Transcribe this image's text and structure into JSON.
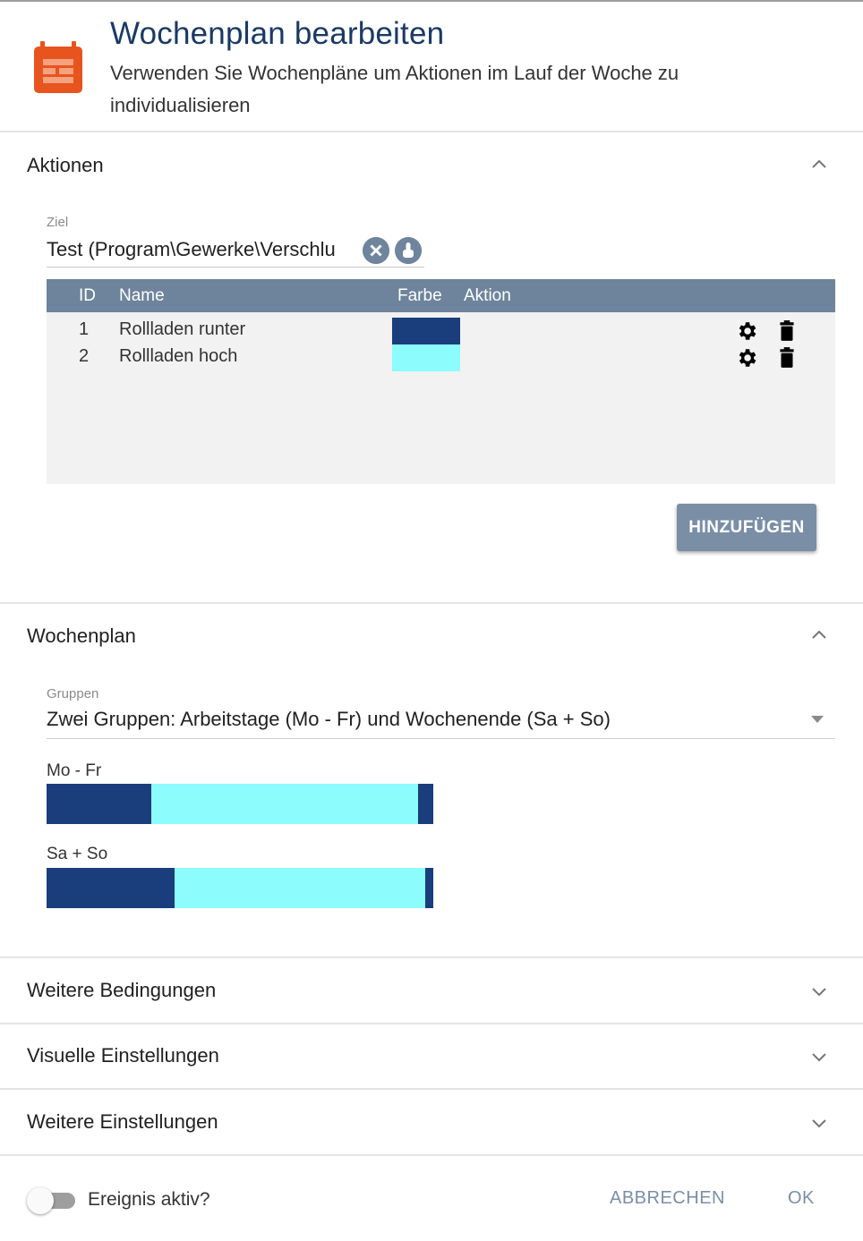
{
  "dialog": {
    "title": "Wochenplan bearbeiten",
    "subtitle": "Verwenden Sie Wochenpläne um Aktionen im Lauf der Woche zu individualisieren",
    "icon": "calendar-icon",
    "accent_color": "#e8541e"
  },
  "aktionen": {
    "section_title": "Aktionen",
    "ziel_label": "Ziel",
    "ziel_value": "Test (Program\\Gewerke\\Verschlu",
    "table": {
      "headers": [
        "ID",
        "Name",
        "Farbe",
        "Aktion"
      ],
      "rows": [
        {
          "id": "1",
          "name": "Rollladen runter",
          "color": "#1a3d7c"
        },
        {
          "id": "2",
          "name": "Rollladen hoch",
          "color": "#8dfcfc"
        }
      ],
      "header_color": "#6e849c"
    },
    "add_button": "HINZUFÜGEN"
  },
  "wochenplan": {
    "section_title": "Wochenplan",
    "gruppen_label": "Gruppen",
    "gruppen_value": "Zwei Gruppen: Arbeitstage (Mo - Fr) und Wochenende (Sa + So)",
    "groups": [
      {
        "label": "Mo - Fr",
        "segments": [
          {
            "color": "#1a3d7c",
            "fraction": 0.27
          },
          {
            "color": "#8dfcfc",
            "fraction": 0.69
          },
          {
            "color": "#1a3d7c",
            "fraction": 0.04
          }
        ]
      },
      {
        "label": "Sa + So",
        "segments": [
          {
            "color": "#1a3d7c",
            "fraction": 0.33
          },
          {
            "color": "#8dfcfc",
            "fraction": 0.65
          },
          {
            "color": "#1a3d7c",
            "fraction": 0.02
          }
        ]
      }
    ]
  },
  "collapsed_sections": [
    "Weitere Bedingungen",
    "Visuelle Einstellungen",
    "Weitere Einstellungen"
  ],
  "footer": {
    "toggle_label": "Ereignis aktiv?",
    "toggle_on": false,
    "cancel": "ABBRECHEN",
    "ok": "OK"
  }
}
